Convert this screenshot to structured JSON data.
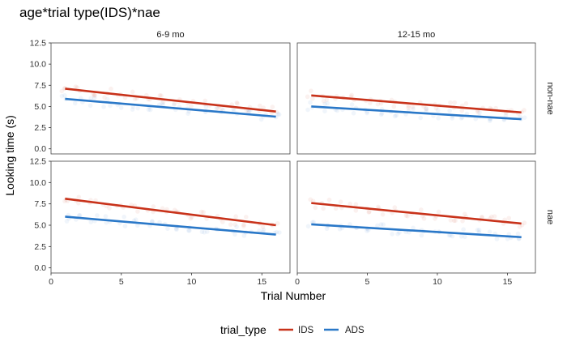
{
  "chart_data": {
    "type": "scatter",
    "title": "age*trial type(IDS)*nae",
    "xlabel": "Trial Number",
    "ylabel": "Looking time (s)",
    "xlim": [
      0,
      17
    ],
    "ylim": [
      -0.6,
      12.5
    ],
    "xticks": [
      0,
      5,
      10,
      15
    ],
    "yticks": [
      "0.0",
      "2.5",
      "5.0",
      "7.5",
      "10.0",
      "12.5"
    ],
    "facet_columns": [
      "6-9 mo",
      "12-15 mo"
    ],
    "facet_rows": [
      "non-nae",
      "nae"
    ],
    "legend": {
      "title": "trial_type",
      "position": "bottom",
      "entries": [
        {
          "name": "IDS",
          "color": "#c8321a"
        },
        {
          "name": "ADS",
          "color": "#2a78c8"
        }
      ]
    },
    "grid": false,
    "panels": [
      {
        "col": "6-9 mo",
        "row": "non-nae",
        "series": [
          {
            "name": "IDS",
            "fit": {
              "x": [
                1,
                16
              ],
              "y": [
                7.1,
                4.4
              ]
            }
          },
          {
            "name": "ADS",
            "fit": {
              "x": [
                1,
                16
              ],
              "y": [
                5.9,
                3.8
              ]
            }
          }
        ]
      },
      {
        "col": "12-15 mo",
        "row": "non-nae",
        "series": [
          {
            "name": "IDS",
            "fit": {
              "x": [
                1,
                16
              ],
              "y": [
                6.3,
                4.3
              ]
            }
          },
          {
            "name": "ADS",
            "fit": {
              "x": [
                1,
                16
              ],
              "y": [
                5.0,
                3.5
              ]
            }
          }
        ]
      },
      {
        "col": "6-9 mo",
        "row": "nae",
        "series": [
          {
            "name": "IDS",
            "fit": {
              "x": [
                1,
                16
              ],
              "y": [
                8.1,
                5.0
              ]
            }
          },
          {
            "name": "ADS",
            "fit": {
              "x": [
                1,
                16
              ],
              "y": [
                6.0,
                3.9
              ]
            }
          }
        ]
      },
      {
        "col": "12-15 mo",
        "row": "nae",
        "series": [
          {
            "name": "IDS",
            "fit": {
              "x": [
                1,
                16
              ],
              "y": [
                7.6,
                5.2
              ]
            }
          },
          {
            "name": "ADS",
            "fit": {
              "x": [
                1,
                16
              ],
              "y": [
                5.1,
                3.6
              ]
            }
          }
        ]
      }
    ],
    "point_scatter": 0.55,
    "points_per_trial": 3
  }
}
